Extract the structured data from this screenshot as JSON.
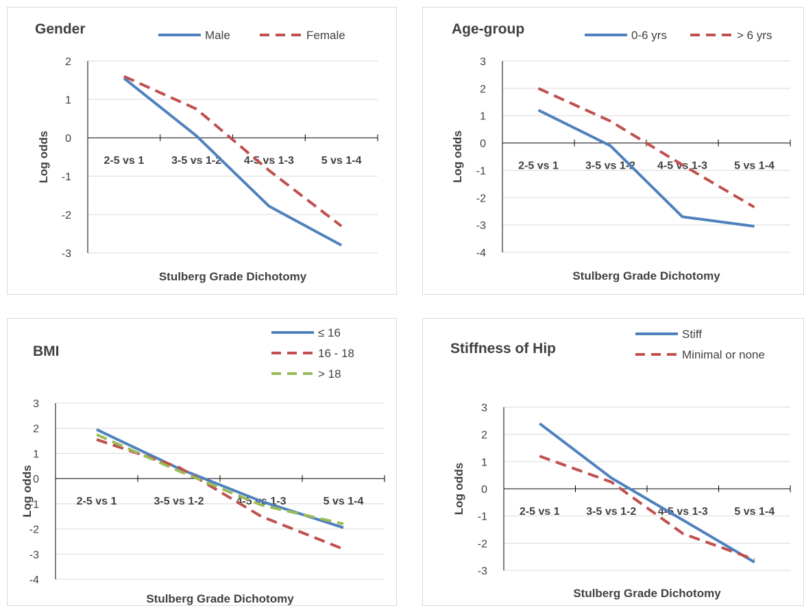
{
  "colors": {
    "series1": "#4f81bd",
    "series2": "#c0504d",
    "series3": "#9bbb59",
    "grid": "#d9d9d9",
    "axis": "#000000"
  },
  "chart_data": [
    {
      "type": "line",
      "title": "Gender",
      "xlabel": "Stulberg Grade Dichotomy",
      "ylabel": "Log odds",
      "categories": [
        "2-5 vs 1",
        "3-5 vs 1-2",
        "4-5 vs 1-3",
        "5 vs 1-4"
      ],
      "ylim": [
        -3,
        2
      ],
      "yticks": [
        "-3",
        "-2",
        "-1",
        "0",
        "1",
        "2"
      ],
      "grid": true,
      "legend_position": "top",
      "series": [
        {
          "name": "Male",
          "values": [
            1.55,
            0.05,
            -1.78,
            -2.8
          ],
          "dash": "solid"
        },
        {
          "name": "Female",
          "values": [
            1.6,
            0.75,
            -0.85,
            -2.3
          ],
          "dash": "dashed"
        }
      ]
    },
    {
      "type": "line",
      "title": "Age-group",
      "xlabel": "Stulberg Grade Dichotomy",
      "ylabel": "Log odds",
      "categories": [
        "2-5 vs 1",
        "3-5 vs 1-2",
        "4-5 vs 1-3",
        "5 vs 1-4"
      ],
      "ylim": [
        -4,
        3
      ],
      "yticks": [
        "-4",
        "-3",
        "-2",
        "-1",
        "0",
        "1",
        "2",
        "3"
      ],
      "grid": true,
      "legend_position": "top",
      "series": [
        {
          "name": "0-6 yrs",
          "values": [
            1.2,
            -0.1,
            -2.7,
            -3.05
          ],
          "dash": "solid"
        },
        {
          "name": "> 6 yrs",
          "values": [
            2.0,
            0.8,
            -0.8,
            -2.35
          ],
          "dash": "dashed"
        }
      ]
    },
    {
      "type": "line",
      "title": "BMI",
      "xlabel": "Stulberg Grade Dichotomy",
      "ylabel": "Log odds",
      "categories": [
        "2-5 vs 1",
        "3-5 vs 1-2",
        "4-5 vs 1-3",
        "5 vs 1-4"
      ],
      "ylim": [
        -4,
        3
      ],
      "yticks": [
        "-4",
        "-3",
        "-2",
        "-1",
        "0",
        "1",
        "2",
        "3"
      ],
      "grid": true,
      "legend_position": "top-right",
      "series": [
        {
          "name": "≤ 16",
          "values": [
            1.95,
            0.4,
            -0.9,
            -1.95
          ],
          "dash": "solid"
        },
        {
          "name": "16 - 18",
          "values": [
            1.55,
            0.45,
            -1.5,
            -2.8
          ],
          "dash": "dashed"
        },
        {
          "name": "> 18",
          "values": [
            1.75,
            0.3,
            -1.05,
            -1.8
          ],
          "dash": "dashed-green"
        }
      ]
    },
    {
      "type": "line",
      "title": "Stiffness of Hip",
      "xlabel": "Stulberg Grade Dichotomy",
      "ylabel": "Log odds",
      "categories": [
        "2-5 vs 1",
        "3-5 vs 1-2",
        "4-5 vs 1-3",
        "5 vs 1-4"
      ],
      "ylim": [
        -3,
        3
      ],
      "yticks": [
        "-3",
        "-2",
        "-1",
        "0",
        "1",
        "2",
        "3"
      ],
      "grid": true,
      "legend_position": "top-right",
      "series": [
        {
          "name": "Stiff",
          "values": [
            2.4,
            0.4,
            -1.15,
            -2.7
          ],
          "dash": "solid"
        },
        {
          "name": "Minimal or none",
          "values": [
            1.2,
            0.25,
            -1.65,
            -2.6
          ],
          "dash": "dashed"
        }
      ]
    }
  ]
}
